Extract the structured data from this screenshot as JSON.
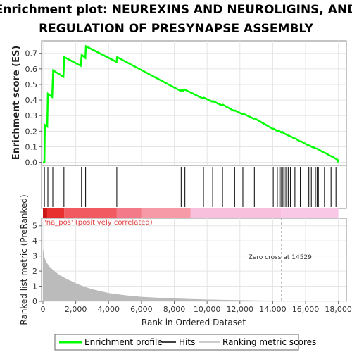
{
  "chart_data": {
    "type": "line",
    "title_lines": [
      "Enrichment plot: NEUREXINS AND NEUROLIGINS, AND",
      "REGULATION OF PRESYNAPSE ASSEMBLY"
    ],
    "ylabel": "Enrichment score (ES)",
    "xlabel": "Rank in Ordered Dataset",
    "ylabel2": "Ranked list metric (PreRanked)",
    "es_ylim": [
      -0.02,
      0.78
    ],
    "es_yticks": [
      "0.0",
      "0.1",
      "0.2",
      "0.3",
      "0.4",
      "0.5",
      "0.6",
      "0.7"
    ],
    "es_ytick_values": [
      0.0,
      0.1,
      0.2,
      0.3,
      0.4,
      0.5,
      0.6,
      0.7
    ],
    "metric_ylim": [
      0,
      5.5
    ],
    "metric_yticks": [
      "0",
      "1",
      "2",
      "3",
      "4",
      "5"
    ],
    "metric_ytick_values": [
      0,
      1,
      2,
      3,
      4,
      5
    ],
    "xlim": [
      0,
      18000
    ],
    "xticks": [
      "0",
      "2,000",
      "4,000",
      "6,000",
      "8,000",
      "10,000",
      "12,000",
      "14,000",
      "16,000",
      "18,000"
    ],
    "xtick_values": [
      0,
      2000,
      4000,
      6000,
      8000,
      10000,
      12000,
      14000,
      16000,
      18000
    ],
    "es_profile": {
      "x": [
        0,
        90,
        120,
        260,
        300,
        560,
        620,
        1250,
        1300,
        2300,
        2360,
        2580,
        2620,
        4480,
        4520,
        8400,
        8440,
        8550,
        8620,
        8680,
        9750,
        9800,
        10300,
        10360,
        10900,
        10960,
        11650,
        11700,
        12150,
        12200,
        12850,
        12900,
        14000,
        14050,
        14300,
        14350,
        14520,
        14580,
        14700,
        14800,
        14950,
        15050,
        15300,
        15400,
        15650,
        15750,
        16150,
        16250,
        16400,
        16500,
        16600,
        16700,
        16800,
        17100,
        17200,
        17500,
        17600,
        17850,
        17950,
        18000
      ],
      "y": [
        0.0,
        0.0,
        0.24,
        0.23,
        0.44,
        0.42,
        0.59,
        0.55,
        0.675,
        0.62,
        0.69,
        0.67,
        0.745,
        0.645,
        0.675,
        0.458,
        0.466,
        0.46,
        0.468,
        0.465,
        0.41,
        0.415,
        0.39,
        0.393,
        0.365,
        0.37,
        0.33,
        0.333,
        0.31,
        0.312,
        0.28,
        0.282,
        0.215,
        0.216,
        0.2,
        0.205,
        0.192,
        0.196,
        0.185,
        0.18,
        0.172,
        0.168,
        0.155,
        0.152,
        0.135,
        0.133,
        0.11,
        0.108,
        0.098,
        0.096,
        0.09,
        0.088,
        0.082,
        0.063,
        0.06,
        0.042,
        0.038,
        0.022,
        0.016,
        0.0
      ]
    },
    "hits": [
      90,
      300,
      600,
      1280,
      2350,
      2600,
      4500,
      8420,
      8650,
      9780,
      10340,
      10940,
      11680,
      12180,
      12880,
      14030,
      14280,
      14400,
      14500,
      14560,
      14620,
      14700,
      14800,
      14940,
      15080,
      15350,
      15680,
      16200,
      16350,
      16450,
      16600,
      16700,
      16780,
      17150,
      17550,
      17850
    ],
    "metric_curve": {
      "x": [
        0,
        100,
        200,
        400,
        700,
        1000,
        1500,
        2000,
        2500,
        3000,
        4000,
        5000,
        6000,
        7000,
        8000,
        9000,
        10000,
        11000,
        12000,
        13000,
        14000,
        14529,
        15000,
        16000,
        17000,
        18000
      ],
      "y": [
        3.5,
        2.9,
        2.6,
        2.3,
        2.0,
        1.75,
        1.45,
        1.2,
        0.98,
        0.8,
        0.55,
        0.4,
        0.3,
        0.24,
        0.19,
        0.15,
        0.12,
        0.1,
        0.08,
        0.06,
        0.04,
        0.0,
        0.0,
        0.0,
        0.0,
        0.0
      ]
    },
    "zero_cross_rank": 14529,
    "zero_cross_label": "Zero cross at 14529",
    "pos_label": "'na_pos' (positively correlated)",
    "legend": {
      "placement": "bottom",
      "items": [
        "Enrichment profile",
        "Hits",
        "Ranking metric scores"
      ]
    },
    "colors": {
      "es_line": "#00ff00",
      "hits": "#000000",
      "metric_fill": "#bbbbbb",
      "grid": "#e5e5e5",
      "bar_red": "#e8383b",
      "bar_pink": "#f08bb0",
      "bar_light_pink": "#f9c3e0",
      "bar_blue": "#9aa8e8",
      "zero_cross_line": "#aaaaaa"
    }
  }
}
